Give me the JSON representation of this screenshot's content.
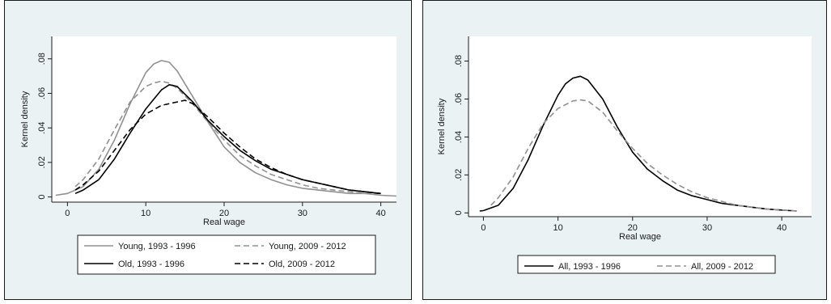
{
  "chart_data": [
    {
      "type": "line",
      "title": "",
      "xlabel": "Real wage",
      "ylabel": "Kernel density",
      "xlim": [
        -2,
        42
      ],
      "ylim": [
        -0.003,
        0.093
      ],
      "xticks": [
        0,
        10,
        20,
        30,
        40
      ],
      "xtick_labels": [
        "0",
        "10",
        "20",
        "30",
        "40"
      ],
      "yticks": [
        0,
        0.02,
        0.04,
        0.06,
        0.08
      ],
      "ytick_labels": [
        "0",
        ".02",
        ".04",
        ".06",
        ".08"
      ],
      "grid": false,
      "legend_position": "bottom",
      "legend_columns": 2,
      "series": [
        {
          "name": "Young, 1993 - 1996",
          "color": "#909090",
          "dash": "solid",
          "points": [
            [
              -1.5,
              0.001
            ],
            [
              0,
              0.002
            ],
            [
              2,
              0.006
            ],
            [
              4,
              0.016
            ],
            [
              6,
              0.033
            ],
            [
              8,
              0.054
            ],
            [
              10,
              0.072
            ],
            [
              11,
              0.077
            ],
            [
              12,
              0.079
            ],
            [
              13,
              0.078
            ],
            [
              14,
              0.073
            ],
            [
              16,
              0.058
            ],
            [
              18,
              0.043
            ],
            [
              20,
              0.029
            ],
            [
              22,
              0.02
            ],
            [
              24,
              0.014
            ],
            [
              26,
              0.01
            ],
            [
              28,
              0.007
            ],
            [
              30,
              0.005
            ],
            [
              32,
              0.004
            ],
            [
              34,
              0.003
            ],
            [
              36,
              0.002
            ],
            [
              38,
              0.002
            ],
            [
              40,
              0.001
            ],
            [
              42,
              0.0005
            ]
          ]
        },
        {
          "name": "Young, 2009 - 2012",
          "color": "#909090",
          "dash": "dashed",
          "points": [
            [
              1,
              0.006
            ],
            [
              2,
              0.01
            ],
            [
              4,
              0.022
            ],
            [
              6,
              0.039
            ],
            [
              8,
              0.055
            ],
            [
              10,
              0.064
            ],
            [
              11,
              0.066
            ],
            [
              12,
              0.067
            ],
            [
              13,
              0.066
            ],
            [
              14,
              0.063
            ],
            [
              16,
              0.054
            ],
            [
              18,
              0.043
            ],
            [
              20,
              0.033
            ],
            [
              22,
              0.024
            ],
            [
              24,
              0.018
            ],
            [
              26,
              0.013
            ],
            [
              28,
              0.01
            ],
            [
              30,
              0.007
            ],
            [
              32,
              0.005
            ],
            [
              34,
              0.004
            ],
            [
              36,
              0.003
            ],
            [
              38,
              0.002
            ],
            [
              40,
              0.002
            ]
          ]
        },
        {
          "name": "Old, 1993 - 1996",
          "color": "#000000",
          "dash": "solid",
          "points": [
            [
              1,
              0.002
            ],
            [
              2,
              0.004
            ],
            [
              4,
              0.01
            ],
            [
              6,
              0.022
            ],
            [
              8,
              0.037
            ],
            [
              10,
              0.051
            ],
            [
              12,
              0.062
            ],
            [
              13,
              0.065
            ],
            [
              14,
              0.064
            ],
            [
              16,
              0.055
            ],
            [
              18,
              0.044
            ],
            [
              20,
              0.035
            ],
            [
              22,
              0.027
            ],
            [
              24,
              0.021
            ],
            [
              26,
              0.016
            ],
            [
              28,
              0.013
            ],
            [
              30,
              0.01
            ],
            [
              32,
              0.008
            ],
            [
              34,
              0.006
            ],
            [
              36,
              0.004
            ],
            [
              38,
              0.003
            ],
            [
              40,
              0.002
            ]
          ]
        },
        {
          "name": "Old, 2009 - 2012",
          "color": "#000000",
          "dash": "dashed",
          "points": [
            [
              1,
              0.004
            ],
            [
              2,
              0.007
            ],
            [
              4,
              0.015
            ],
            [
              6,
              0.027
            ],
            [
              8,
              0.039
            ],
            [
              10,
              0.048
            ],
            [
              12,
              0.053
            ],
            [
              14,
              0.055
            ],
            [
              15,
              0.056
            ],
            [
              16,
              0.054
            ],
            [
              18,
              0.046
            ],
            [
              20,
              0.037
            ],
            [
              22,
              0.029
            ],
            [
              24,
              0.022
            ],
            [
              26,
              0.017
            ],
            [
              28,
              0.013
            ],
            [
              30,
              0.01
            ],
            [
              32,
              0.008
            ],
            [
              34,
              0.006
            ],
            [
              36,
              0.004
            ],
            [
              38,
              0.003
            ],
            [
              40,
              0.002
            ]
          ]
        }
      ]
    },
    {
      "type": "line",
      "title": "",
      "xlabel": "Real wage",
      "ylabel": "Kernel density",
      "xlim": [
        -2,
        44
      ],
      "ylim": [
        -0.002,
        0.093
      ],
      "xticks": [
        0,
        10,
        20,
        30,
        40
      ],
      "xtick_labels": [
        "0",
        "10",
        "20",
        "30",
        "40"
      ],
      "yticks": [
        0,
        0.02,
        0.04,
        0.06,
        0.08
      ],
      "ytick_labels": [
        "0",
        ".02",
        ".04",
        ".06",
        ".08"
      ],
      "grid": false,
      "legend_position": "bottom",
      "legend_columns": 2,
      "series": [
        {
          "name": "All, 1993 - 1996",
          "color": "#000000",
          "dash": "solid",
          "points": [
            [
              -0.5,
              0.001
            ],
            [
              0,
              0.0012
            ],
            [
              2,
              0.004
            ],
            [
              4,
              0.013
            ],
            [
              6,
              0.028
            ],
            [
              8,
              0.046
            ],
            [
              10,
              0.062
            ],
            [
              11,
              0.068
            ],
            [
              12,
              0.071
            ],
            [
              13,
              0.072
            ],
            [
              14,
              0.07
            ],
            [
              16,
              0.06
            ],
            [
              18,
              0.045
            ],
            [
              20,
              0.032
            ],
            [
              22,
              0.023
            ],
            [
              24,
              0.017
            ],
            [
              26,
              0.012
            ],
            [
              28,
              0.009
            ],
            [
              30,
              0.007
            ],
            [
              32,
              0.005
            ],
            [
              34,
              0.004
            ],
            [
              36,
              0.003
            ],
            [
              38,
              0.002
            ],
            [
              40,
              0.0015
            ],
            [
              42,
              0.001
            ]
          ]
        },
        {
          "name": "All, 2009 - 2012",
          "color": "#909090",
          "dash": "dashed",
          "points": [
            [
              1,
              0.004
            ],
            [
              2,
              0.008
            ],
            [
              4,
              0.019
            ],
            [
              6,
              0.034
            ],
            [
              8,
              0.047
            ],
            [
              10,
              0.055
            ],
            [
              12,
              0.059
            ],
            [
              13,
              0.0595
            ],
            [
              14,
              0.059
            ],
            [
              16,
              0.053
            ],
            [
              18,
              0.043
            ],
            [
              20,
              0.034
            ],
            [
              22,
              0.026
            ],
            [
              24,
              0.02
            ],
            [
              26,
              0.015
            ],
            [
              28,
              0.011
            ],
            [
              30,
              0.008
            ],
            [
              32,
              0.006
            ],
            [
              34,
              0.004
            ],
            [
              36,
              0.003
            ],
            [
              38,
              0.002
            ],
            [
              40,
              0.0015
            ],
            [
              42,
              0.001
            ]
          ]
        }
      ]
    }
  ]
}
